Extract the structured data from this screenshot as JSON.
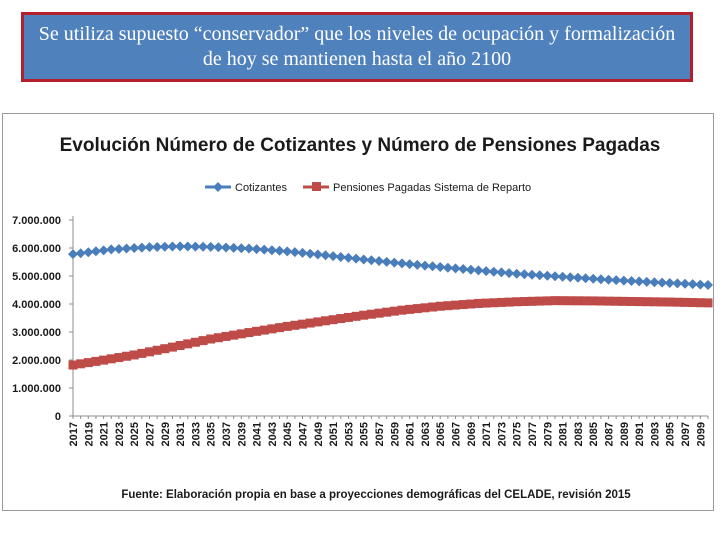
{
  "banner": {
    "text": "Se utiliza supuesto “conservador” que los niveles de ocupación y formalización de hoy se mantienen hasta el año 2100"
  },
  "colors": {
    "banner_bg": "#4f81bd",
    "banner_border": "#b2202d",
    "series_cotizantes": "#4a7ebb",
    "series_pensiones": "#be4b48"
  },
  "chart_data": {
    "type": "line",
    "title": "Evolución Número de Cotizantes y Número de Pensiones Pagadas",
    "source": "Fuente: Elaboración propia en base a proyecciones demográficas del CELADE, revisión 2015",
    "xlabel": "",
    "ylabel": "",
    "ylim": [
      0,
      7000000
    ],
    "yticks": [
      0,
      1000000,
      2000000,
      3000000,
      4000000,
      5000000,
      6000000,
      7000000
    ],
    "ytick_labels": [
      "0",
      "1.000.000",
      "2.000.000",
      "3.000.000",
      "4.000.000",
      "5.000.000",
      "6.000.000",
      "7.000.000"
    ],
    "x_start": 2017,
    "x_end": 2100,
    "xtick_labels": [
      "2017",
      "2019",
      "2021",
      "2023",
      "2025",
      "2027",
      "2029",
      "2031",
      "2033",
      "2035",
      "2037",
      "2039",
      "2041",
      "2043",
      "2045",
      "2047",
      "2049",
      "2051",
      "2053",
      "2055",
      "2057",
      "2059",
      "2061",
      "2063",
      "2065",
      "2067",
      "2069",
      "2071",
      "2073",
      "2075",
      "2077",
      "2079",
      "2081",
      "2083",
      "2085",
      "2087",
      "2089",
      "2091",
      "2093",
      "2095",
      "2097",
      "2099"
    ],
    "legend_position": "top-left",
    "series": [
      {
        "name": "Cotizantes",
        "marker": "diamond",
        "color": "#4a7ebb",
        "anchors": [
          [
            2017,
            5780000
          ],
          [
            2022,
            5950000
          ],
          [
            2027,
            6030000
          ],
          [
            2031,
            6060000
          ],
          [
            2035,
            6040000
          ],
          [
            2040,
            5980000
          ],
          [
            2045,
            5880000
          ],
          [
            2050,
            5740000
          ],
          [
            2055,
            5590000
          ],
          [
            2060,
            5450000
          ],
          [
            2065,
            5320000
          ],
          [
            2070,
            5200000
          ],
          [
            2075,
            5080000
          ],
          [
            2080,
            4990000
          ],
          [
            2085,
            4900000
          ],
          [
            2090,
            4820000
          ],
          [
            2095,
            4750000
          ],
          [
            2100,
            4680000
          ]
        ]
      },
      {
        "name": "Pensiones Pagadas Sistema de Reparto",
        "marker": "square",
        "color": "#be4b48",
        "anchors": [
          [
            2017,
            1820000
          ],
          [
            2020,
            1950000
          ],
          [
            2025,
            2180000
          ],
          [
            2030,
            2460000
          ],
          [
            2035,
            2750000
          ],
          [
            2040,
            2980000
          ],
          [
            2045,
            3200000
          ],
          [
            2050,
            3400000
          ],
          [
            2055,
            3600000
          ],
          [
            2060,
            3780000
          ],
          [
            2065,
            3920000
          ],
          [
            2070,
            4020000
          ],
          [
            2075,
            4080000
          ],
          [
            2080,
            4120000
          ],
          [
            2085,
            4110000
          ],
          [
            2090,
            4090000
          ],
          [
            2095,
            4070000
          ],
          [
            2100,
            4040000
          ]
        ]
      }
    ]
  }
}
